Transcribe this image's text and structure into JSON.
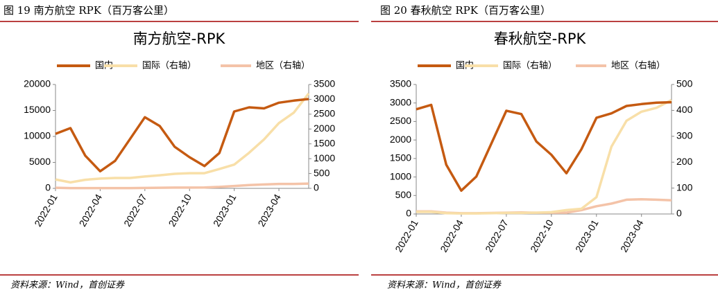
{
  "chart_data": [
    {
      "type": "line",
      "caption": "图 19 南方航空 RPK（百万客公里）",
      "title": "南方航空-RPK",
      "source": "资料来源：Wind，首创证券",
      "categories": [
        "2022-01",
        null,
        null,
        "2022-04",
        null,
        null,
        "2022-07",
        null,
        null,
        "2022-10",
        null,
        null,
        "2023-01",
        null,
        null,
        "2023-04",
        null,
        null
      ],
      "ylim": [
        0,
        20000
      ],
      "yticks": [
        0,
        5000,
        10000,
        15000,
        20000
      ],
      "y2lim": [
        0,
        3500
      ],
      "y2ticks": [
        0,
        500,
        1000,
        1500,
        2000,
        2500,
        3000,
        3500
      ],
      "series": [
        {
          "name": "国内",
          "color": "#c55a11",
          "values": [
            10500,
            11600,
            6300,
            3300,
            5300,
            9500,
            13700,
            12000,
            8000,
            6000,
            4300,
            6800,
            14800,
            15600,
            15400,
            16500,
            16900,
            17200
          ]
        },
        {
          "name": "国际（右轴）",
          "color": "#f8dfa8",
          "axis": "y2",
          "values": [
            300,
            200,
            290,
            330,
            350,
            350,
            400,
            440,
            490,
            510,
            510,
            650,
            800,
            1200,
            1650,
            2200,
            2550,
            3200
          ]
        },
        {
          "name": "地区（右轴）",
          "color": "#f4c3a8",
          "axis": "y2",
          "values": [
            20,
            10,
            10,
            10,
            10,
            10,
            15,
            20,
            25,
            25,
            30,
            50,
            80,
            110,
            130,
            150,
            150,
            160
          ]
        }
      ]
    },
    {
      "type": "line",
      "caption": "图 20 春秋航空 RPK（百万客公里）",
      "title": "春秋航空-RPK",
      "source": "资料来源：Wind，首创证券",
      "categories": [
        "2022-01",
        null,
        null,
        "2022-04",
        null,
        null,
        "2022-07",
        null,
        null,
        "2022-10",
        null,
        null,
        "2023-01",
        null,
        null,
        "2023-04",
        null,
        null
      ],
      "ylim": [
        0,
        3500
      ],
      "yticks": [
        0,
        500,
        1000,
        1500,
        2000,
        2500,
        3000,
        3500
      ],
      "y2lim": [
        0,
        500
      ],
      "y2ticks": [
        0,
        100,
        200,
        300,
        400,
        500
      ],
      "series": [
        {
          "name": "国内",
          "color": "#c55a11",
          "values": [
            2830,
            2950,
            1330,
            630,
            1010,
            1900,
            2790,
            2700,
            1960,
            1600,
            1100,
            1750,
            2600,
            2720,
            2920,
            2970,
            3010,
            3020
          ]
        },
        {
          "name": "国际（右轴）",
          "color": "#f8dfa8",
          "axis": "y2",
          "values": [
            8,
            8,
            3,
            2,
            2,
            3,
            4,
            4,
            5,
            7,
            15,
            20,
            65,
            260,
            360,
            395,
            410,
            440
          ]
        },
        {
          "name": "地区（右轴）",
          "color": "#f4c3a8",
          "axis": "y2",
          "values": [
            10,
            10,
            5,
            3,
            3,
            4,
            5,
            6,
            5,
            5,
            5,
            15,
            30,
            40,
            55,
            57,
            55,
            53
          ]
        }
      ]
    }
  ]
}
